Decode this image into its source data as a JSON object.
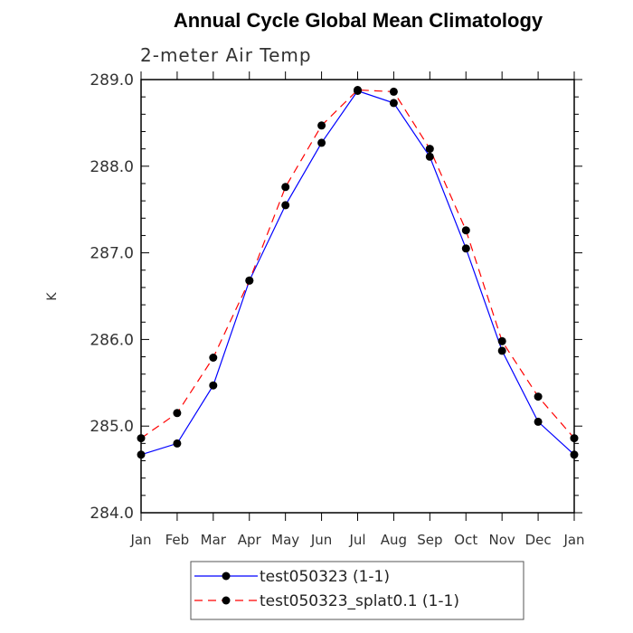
{
  "chart_data": {
    "type": "line",
    "title": "Annual Cycle Global Mean Climatology",
    "subtitle": "2-meter Air Temp",
    "ylabel": "K",
    "xlabel": "",
    "ylim": [
      284.0,
      289.0
    ],
    "yticks": [
      "284.0",
      "285.0",
      "286.0",
      "287.0",
      "288.0",
      "289.0"
    ],
    "categories": [
      "Jan",
      "Feb",
      "Mar",
      "Apr",
      "May",
      "Jun",
      "Jul",
      "Aug",
      "Sep",
      "Oct",
      "Nov",
      "Dec",
      "Jan"
    ],
    "series": [
      {
        "name": "test050323 (1-1)",
        "color": "#0000ff",
        "style": "solid",
        "marker": "circle",
        "values": [
          284.67,
          284.8,
          285.47,
          286.68,
          287.55,
          288.27,
          288.87,
          288.73,
          288.11,
          287.05,
          285.87,
          285.05,
          284.67
        ]
      },
      {
        "name": "test050323_splat0.1 (1-1)",
        "color": "#ff0000",
        "style": "dashed",
        "marker": "circle",
        "values": [
          284.86,
          285.15,
          285.79,
          286.68,
          287.76,
          288.47,
          288.88,
          288.86,
          288.2,
          287.26,
          285.98,
          285.34,
          284.86
        ]
      }
    ],
    "legend": "bottom-center",
    "grid": false
  }
}
